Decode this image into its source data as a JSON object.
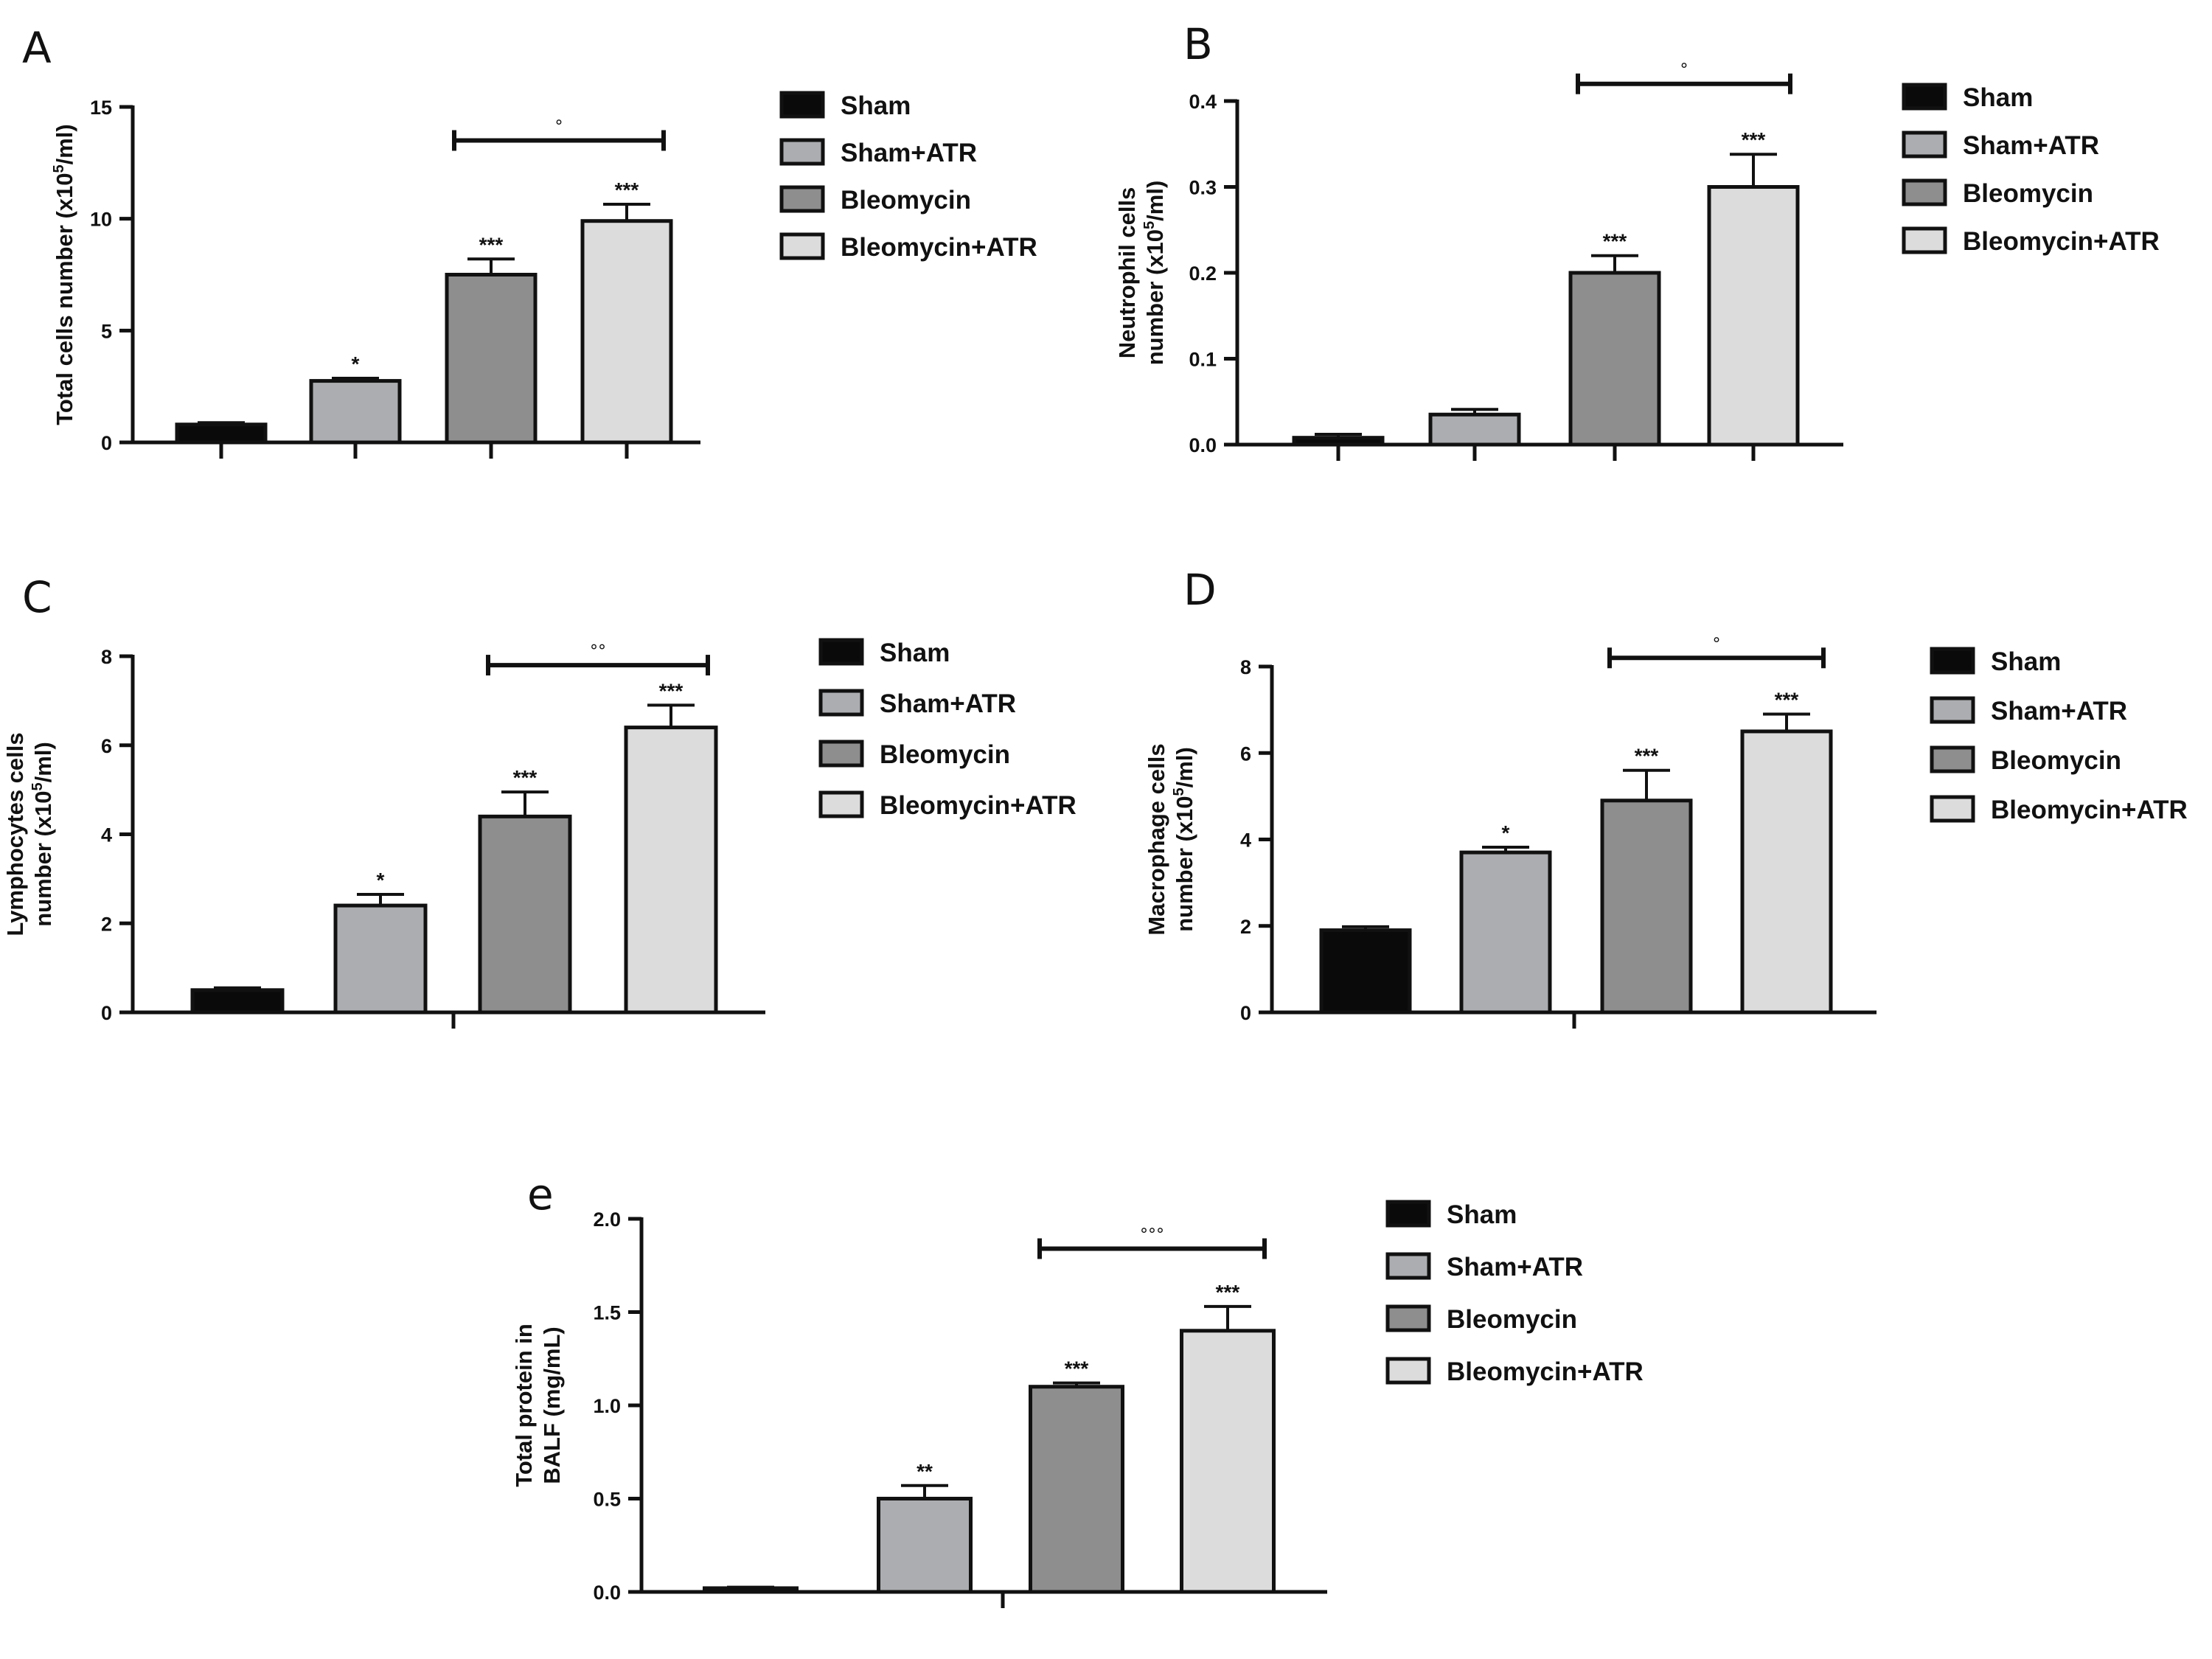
{
  "colors": {
    "Sham": "#0a0a0a",
    "Sham+ATR": "#acadb0",
    "Bleomycin": "#8e8e8e",
    "Bleomycin+ATR": "#dcdcdc"
  },
  "chart_data": [
    {
      "type": "bar",
      "panel": "A",
      "ylabel_pre": "Total cells number (x10",
      "ylabel_sup": "5",
      "ylabel_post": "/ml)",
      "categories": [
        "Sham",
        "Sham+ATR",
        "Bleomycin",
        "Bleomycin+ATR"
      ],
      "values": [
        0.8,
        2.75,
        7.5,
        9.9
      ],
      "errors": [
        0.08,
        0.12,
        0.7,
        0.75
      ],
      "stars": [
        "",
        "*",
        "***",
        "***"
      ],
      "ylim": [
        0,
        15
      ],
      "yticks": [
        0,
        5,
        10,
        15
      ],
      "ytick_labels": [
        "0",
        "5",
        "10",
        "15"
      ],
      "legend": [
        "Sham",
        "Sham+ATR",
        "Bleomycin",
        "Bleomycin+ATR"
      ],
      "bracket": {
        "from": 2,
        "to": 3,
        "y": 13.5,
        "label": "°"
      }
    },
    {
      "type": "bar",
      "panel": "B",
      "ylabel_lines": [
        "Neutrophil cells"
      ],
      "ylabel_pre": "number (x10",
      "ylabel_sup": "5",
      "ylabel_post": "/ml)",
      "categories": [
        "Sham",
        "Sham+ATR",
        "Bleomycin",
        "Bleomycin+ATR"
      ],
      "values": [
        0.008,
        0.035,
        0.2,
        0.3
      ],
      "errors": [
        0.004,
        0.006,
        0.02,
        0.038
      ],
      "stars": [
        "",
        "",
        "***",
        "***"
      ],
      "ylim": [
        0,
        0.4
      ],
      "yticks": [
        0,
        0.1,
        0.2,
        0.3,
        0.4
      ],
      "ytick_labels": [
        "0.0",
        "0.1",
        "0.2",
        "0.3",
        "0.4"
      ],
      "legend": [
        "Sham",
        "Sham+ATR",
        "Bleomycin",
        "Bleomycin+ATR"
      ],
      "bracket": {
        "from": 2,
        "to": 3,
        "y": 0.42,
        "label": "°"
      }
    },
    {
      "type": "bar",
      "panel": "C",
      "ylabel_lines": [
        "Lymphocytes  cells"
      ],
      "ylabel_pre": "number (x10",
      "ylabel_sup": "5",
      "ylabel_post": "/ml)",
      "categories": [
        "Sham",
        "Sham+ATR",
        "Bleomycin",
        "Bleomycin+ATR"
      ],
      "values": [
        0.5,
        2.4,
        4.4,
        6.4
      ],
      "errors": [
        0.05,
        0.25,
        0.55,
        0.5
      ],
      "stars": [
        "",
        "*",
        "***",
        "***"
      ],
      "ylim": [
        0,
        8
      ],
      "yticks": [
        0,
        2,
        4,
        6,
        8
      ],
      "ytick_labels": [
        "0",
        "2",
        "4",
        "6",
        "8"
      ],
      "legend": [
        "Sham",
        "Sham+ATR",
        "Bleomycin",
        "Bleomycin+ATR"
      ],
      "bracket": {
        "from": 2,
        "to": 3,
        "y": 7.8,
        "label": "°°"
      }
    },
    {
      "type": "bar",
      "panel": "D",
      "ylabel_lines": [
        "Macrophage   cells"
      ],
      "ylabel_pre": "number (x10",
      "ylabel_sup": "5",
      "ylabel_post": "/ml)",
      "categories": [
        "Sham",
        "Sham+ATR",
        "Bleomycin",
        "Bleomycin+ATR"
      ],
      "values": [
        1.9,
        3.7,
        4.9,
        6.5
      ],
      "errors": [
        0.08,
        0.12,
        0.7,
        0.4
      ],
      "stars": [
        "",
        "*",
        "***",
        "***"
      ],
      "ylim": [
        0,
        8
      ],
      "yticks": [
        0,
        2,
        4,
        6,
        8
      ],
      "ytick_labels": [
        "0",
        "2",
        "4",
        "6",
        "8"
      ],
      "legend": [
        "Sham",
        "Sham+ATR",
        "Bleomycin",
        "Bleomycin+ATR"
      ],
      "bracket": {
        "from": 2,
        "to": 3,
        "y": 8.2,
        "label": "°"
      }
    },
    {
      "type": "bar",
      "panel": "e",
      "ylabel_lines": [
        "Total protein in",
        "BALF (mg/mL)"
      ],
      "categories": [
        "Sham",
        "Sham+ATR",
        "Bleomycin",
        "Bleomycin+ATR"
      ],
      "values": [
        0.02,
        0.5,
        1.1,
        1.4
      ],
      "errors": [
        0.005,
        0.07,
        0.02,
        0.13
      ],
      "stars": [
        "",
        "**",
        "***",
        "***"
      ],
      "ylim": [
        0,
        2.0
      ],
      "yticks": [
        0,
        0.5,
        1.0,
        1.5,
        2.0
      ],
      "ytick_labels": [
        "0.0",
        "0.5",
        "1.0",
        "1.5",
        "2.0"
      ],
      "legend": [
        "Sham",
        "Sham+ATR",
        "Bleomycin",
        "Bleomycin+ATR"
      ],
      "bracket": {
        "from": 2,
        "to": 3,
        "y": 1.84,
        "label": "°°°"
      }
    }
  ]
}
